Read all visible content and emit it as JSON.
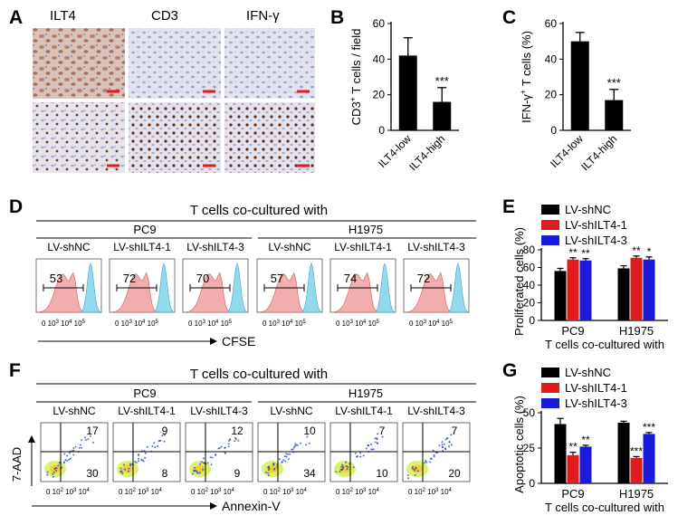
{
  "panels": {
    "A": "A",
    "B": "B",
    "C": "C",
    "D": "D",
    "E": "E",
    "F": "F",
    "G": "G"
  },
  "panel_a": {
    "stains": [
      "ILT4",
      "CD3",
      "IFN-γ"
    ]
  },
  "chart_data": [
    {
      "panel": "B",
      "type": "bar",
      "categories": [
        "ILT4-low",
        "ILT4-high"
      ],
      "values": [
        42,
        16
      ],
      "errors": [
        10,
        8
      ],
      "significance": [
        "",
        "***"
      ],
      "ylabel_parts": [
        "CD3",
        "+",
        " T cells / field"
      ],
      "yticks": [
        "0",
        "20",
        "40",
        "60"
      ],
      "ylim": [
        0,
        60
      ],
      "colors": [
        "#000000"
      ]
    },
    {
      "panel": "C",
      "type": "bar",
      "categories": [
        "ILT4-low",
        "ILT4-high"
      ],
      "values": [
        50,
        17
      ],
      "errors": [
        5,
        6
      ],
      "significance": [
        "",
        "***"
      ],
      "ylabel_parts": [
        "IFN-γ",
        "+",
        " T cells (%)"
      ],
      "yticks": [
        "0",
        "20",
        "40",
        "60"
      ],
      "ylim": [
        0,
        60
      ],
      "colors": [
        "#000000"
      ]
    },
    {
      "panel": "E",
      "type": "bar",
      "categories": [
        "PC9",
        "H1975"
      ],
      "series": [
        {
          "name": "LV-shNC",
          "values": [
            56,
            59
          ],
          "errors": [
            3,
            3
          ],
          "sig": [
            "",
            ""
          ]
        },
        {
          "name": "LV-shILT4-1",
          "values": [
            69,
            71
          ],
          "errors": [
            2,
            2
          ],
          "sig": [
            "**",
            "**"
          ]
        },
        {
          "name": "LV-shILT4-3",
          "values": [
            68,
            69
          ],
          "errors": [
            2,
            3
          ],
          "sig": [
            "**",
            "*"
          ]
        }
      ],
      "ylabel": "Proliferated cells (%)",
      "yticks": [
        "0",
        "20",
        "40",
        "60",
        "80"
      ],
      "ylim": [
        0,
        80
      ],
      "xcaption": "T cells co-cultured with",
      "colors": [
        "#000000",
        "#e01b1b",
        "#1a1adb"
      ]
    },
    {
      "panel": "G",
      "type": "bar",
      "categories": [
        "PC9",
        "H1975"
      ],
      "series": [
        {
          "name": "LV-shNC",
          "values": [
            42,
            43
          ],
          "errors": [
            4,
            1
          ],
          "sig": [
            "",
            ""
          ]
        },
        {
          "name": "LV-shILT4-1",
          "values": [
            20,
            18
          ],
          "errors": [
            2,
            1
          ],
          "sig": [
            "**",
            "***"
          ]
        },
        {
          "name": "LV-shILT4-3",
          "values": [
            26,
            35
          ],
          "errors": [
            1,
            1
          ],
          "sig": [
            "**",
            "***"
          ]
        }
      ],
      "ylabel": "Apoptotic cells (%)",
      "yticks": [
        "0",
        "25",
        "50"
      ],
      "ylim": [
        0,
        50
      ],
      "xcaption": "T cells co-cultured with",
      "colors": [
        "#000000",
        "#e01b1b",
        "#1a1adb"
      ]
    }
  ],
  "panel_d": {
    "title": "T cells co-cultured with",
    "groups": [
      "PC9",
      "H1975"
    ],
    "conditions": [
      "LV-shNC",
      "LV-shILT4-1",
      "LV-shILT4-3",
      "LV-shNC",
      "LV-shILT4-1",
      "LV-shILT4-3"
    ],
    "percentages": [
      "53",
      "72",
      "70",
      "57",
      "74",
      "72"
    ],
    "xticks": [
      "0",
      "10",
      "3",
      "10",
      "4",
      "10",
      "5"
    ],
    "xaxis_label": "CFSE"
  },
  "panel_f": {
    "title": "T cells co-cultured with",
    "groups": [
      "PC9",
      "H1975"
    ],
    "conditions": [
      "LV-shNC",
      "LV-shILT4-1",
      "LV-shILT4-3",
      "LV-shNC",
      "LV-shILT4-1",
      "LV-shILT4-3"
    ],
    "upper_right": [
      "17",
      "9",
      "12",
      "10",
      "7",
      "7"
    ],
    "lower_right": [
      "30",
      "8",
      "9",
      "34",
      "10",
      "20"
    ],
    "xticks": [
      "0",
      "10",
      "2",
      "10",
      "3",
      "10",
      "4"
    ],
    "yaxis_label": "7-AAD",
    "xaxis_label": "Annexin-V"
  }
}
